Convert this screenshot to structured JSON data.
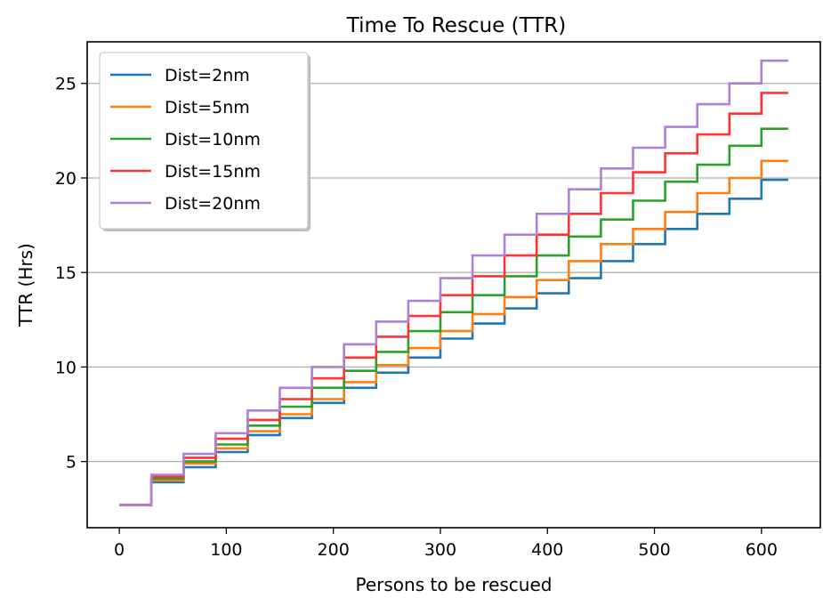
{
  "chart_data": {
    "type": "line",
    "title": "Time To Rescue (TTR)",
    "xlabel": "Persons to be rescued",
    "ylabel": "TTR (Hrs)",
    "xlim": [
      -30,
      655
    ],
    "ylim": [
      1.5,
      27.2
    ],
    "xticks": [
      0,
      100,
      200,
      300,
      400,
      500,
      600
    ],
    "yticks": [
      5,
      10,
      15,
      20,
      25
    ],
    "grid": "horizontal",
    "legend_position": "top-left",
    "step_width": 30,
    "x_end": 625,
    "series": [
      {
        "name": "Dist=2nm",
        "color": "#1f77b4",
        "values": [
          2.7,
          3.9,
          4.7,
          5.5,
          6.4,
          7.3,
          8.1,
          8.9,
          9.7,
          10.5,
          11.5,
          12.3,
          13.1,
          13.9,
          14.7,
          15.6,
          16.5,
          17.3,
          18.1,
          18.9,
          19.9
        ]
      },
      {
        "name": "Dist=5nm",
        "color": "#ff7f0e",
        "values": [
          2.7,
          4.0,
          4.9,
          5.7,
          6.6,
          7.5,
          8.3,
          9.2,
          10.1,
          11.0,
          11.9,
          12.8,
          13.7,
          14.6,
          15.6,
          16.5,
          17.3,
          18.2,
          19.2,
          20.0,
          20.9
        ]
      },
      {
        "name": "Dist=10nm",
        "color": "#2ca02c",
        "values": [
          2.7,
          4.1,
          5.0,
          5.9,
          6.9,
          7.9,
          8.9,
          9.8,
          10.8,
          11.9,
          12.9,
          13.8,
          14.8,
          15.9,
          16.9,
          17.8,
          18.8,
          19.8,
          20.7,
          21.7,
          22.6
        ]
      },
      {
        "name": "Dist=15nm",
        "color": "#ff3333",
        "values": [
          2.7,
          4.2,
          5.2,
          6.2,
          7.2,
          8.3,
          9.4,
          10.5,
          11.6,
          12.7,
          13.8,
          14.8,
          15.9,
          17.0,
          18.1,
          19.2,
          20.3,
          21.3,
          22.3,
          23.4,
          24.5
        ]
      },
      {
        "name": "Dist=20nm",
        "color": "#b07fd8",
        "values": [
          2.7,
          4.3,
          5.4,
          6.5,
          7.7,
          8.9,
          10.0,
          11.2,
          12.4,
          13.5,
          14.7,
          15.9,
          17.0,
          18.1,
          19.4,
          20.5,
          21.6,
          22.7,
          23.9,
          25.0,
          26.2
        ]
      }
    ]
  }
}
